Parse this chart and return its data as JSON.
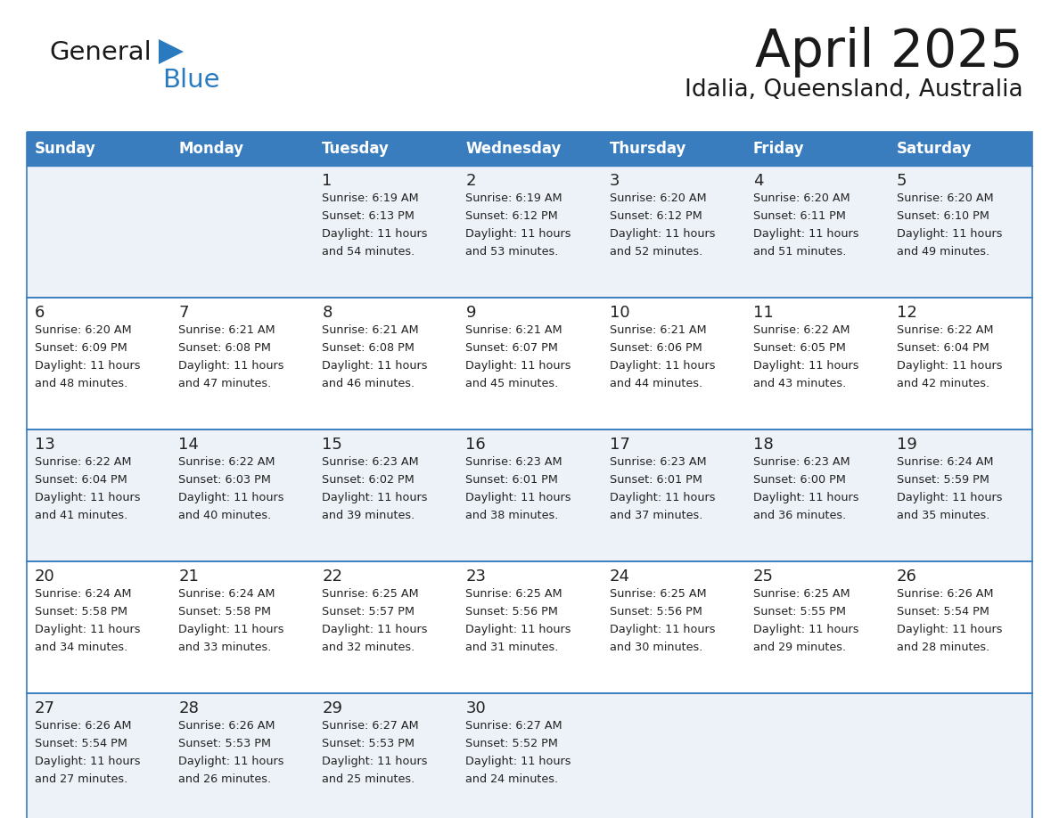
{
  "title": "April 2025",
  "subtitle": "Idalia, Queensland, Australia",
  "header_bg_color": "#3a7dbf",
  "header_text_color": "#ffffff",
  "row_bg_even": "#edf2f8",
  "row_bg_odd": "#ffffff",
  "day_names": [
    "Sunday",
    "Monday",
    "Tuesday",
    "Wednesday",
    "Thursday",
    "Friday",
    "Saturday"
  ],
  "days": [
    {
      "day": 1,
      "col": 2,
      "row": 0,
      "sunrise": "6:19 AM",
      "sunset": "6:13 PM",
      "daylight": "11 hours and 54 minutes."
    },
    {
      "day": 2,
      "col": 3,
      "row": 0,
      "sunrise": "6:19 AM",
      "sunset": "6:12 PM",
      "daylight": "11 hours and 53 minutes."
    },
    {
      "day": 3,
      "col": 4,
      "row": 0,
      "sunrise": "6:20 AM",
      "sunset": "6:12 PM",
      "daylight": "11 hours and 52 minutes."
    },
    {
      "day": 4,
      "col": 5,
      "row": 0,
      "sunrise": "6:20 AM",
      "sunset": "6:11 PM",
      "daylight": "11 hours and 51 minutes."
    },
    {
      "day": 5,
      "col": 6,
      "row": 0,
      "sunrise": "6:20 AM",
      "sunset": "6:10 PM",
      "daylight": "11 hours and 49 minutes."
    },
    {
      "day": 6,
      "col": 0,
      "row": 1,
      "sunrise": "6:20 AM",
      "sunset": "6:09 PM",
      "daylight": "11 hours and 48 minutes."
    },
    {
      "day": 7,
      "col": 1,
      "row": 1,
      "sunrise": "6:21 AM",
      "sunset": "6:08 PM",
      "daylight": "11 hours and 47 minutes."
    },
    {
      "day": 8,
      "col": 2,
      "row": 1,
      "sunrise": "6:21 AM",
      "sunset": "6:08 PM",
      "daylight": "11 hours and 46 minutes."
    },
    {
      "day": 9,
      "col": 3,
      "row": 1,
      "sunrise": "6:21 AM",
      "sunset": "6:07 PM",
      "daylight": "11 hours and 45 minutes."
    },
    {
      "day": 10,
      "col": 4,
      "row": 1,
      "sunrise": "6:21 AM",
      "sunset": "6:06 PM",
      "daylight": "11 hours and 44 minutes."
    },
    {
      "day": 11,
      "col": 5,
      "row": 1,
      "sunrise": "6:22 AM",
      "sunset": "6:05 PM",
      "daylight": "11 hours and 43 minutes."
    },
    {
      "day": 12,
      "col": 6,
      "row": 1,
      "sunrise": "6:22 AM",
      "sunset": "6:04 PM",
      "daylight": "11 hours and 42 minutes."
    },
    {
      "day": 13,
      "col": 0,
      "row": 2,
      "sunrise": "6:22 AM",
      "sunset": "6:04 PM",
      "daylight": "11 hours and 41 minutes."
    },
    {
      "day": 14,
      "col": 1,
      "row": 2,
      "sunrise": "6:22 AM",
      "sunset": "6:03 PM",
      "daylight": "11 hours and 40 minutes."
    },
    {
      "day": 15,
      "col": 2,
      "row": 2,
      "sunrise": "6:23 AM",
      "sunset": "6:02 PM",
      "daylight": "11 hours and 39 minutes."
    },
    {
      "day": 16,
      "col": 3,
      "row": 2,
      "sunrise": "6:23 AM",
      "sunset": "6:01 PM",
      "daylight": "11 hours and 38 minutes."
    },
    {
      "day": 17,
      "col": 4,
      "row": 2,
      "sunrise": "6:23 AM",
      "sunset": "6:01 PM",
      "daylight": "11 hours and 37 minutes."
    },
    {
      "day": 18,
      "col": 5,
      "row": 2,
      "sunrise": "6:23 AM",
      "sunset": "6:00 PM",
      "daylight": "11 hours and 36 minutes."
    },
    {
      "day": 19,
      "col": 6,
      "row": 2,
      "sunrise": "6:24 AM",
      "sunset": "5:59 PM",
      "daylight": "11 hours and 35 minutes."
    },
    {
      "day": 20,
      "col": 0,
      "row": 3,
      "sunrise": "6:24 AM",
      "sunset": "5:58 PM",
      "daylight": "11 hours and 34 minutes."
    },
    {
      "day": 21,
      "col": 1,
      "row": 3,
      "sunrise": "6:24 AM",
      "sunset": "5:58 PM",
      "daylight": "11 hours and 33 minutes."
    },
    {
      "day": 22,
      "col": 2,
      "row": 3,
      "sunrise": "6:25 AM",
      "sunset": "5:57 PM",
      "daylight": "11 hours and 32 minutes."
    },
    {
      "day": 23,
      "col": 3,
      "row": 3,
      "sunrise": "6:25 AM",
      "sunset": "5:56 PM",
      "daylight": "11 hours and 31 minutes."
    },
    {
      "day": 24,
      "col": 4,
      "row": 3,
      "sunrise": "6:25 AM",
      "sunset": "5:56 PM",
      "daylight": "11 hours and 30 minutes."
    },
    {
      "day": 25,
      "col": 5,
      "row": 3,
      "sunrise": "6:25 AM",
      "sunset": "5:55 PM",
      "daylight": "11 hours and 29 minutes."
    },
    {
      "day": 26,
      "col": 6,
      "row": 3,
      "sunrise": "6:26 AM",
      "sunset": "5:54 PM",
      "daylight": "11 hours and 28 minutes."
    },
    {
      "day": 27,
      "col": 0,
      "row": 4,
      "sunrise": "6:26 AM",
      "sunset": "5:54 PM",
      "daylight": "11 hours and 27 minutes."
    },
    {
      "day": 28,
      "col": 1,
      "row": 4,
      "sunrise": "6:26 AM",
      "sunset": "5:53 PM",
      "daylight": "11 hours and 26 minutes."
    },
    {
      "day": 29,
      "col": 2,
      "row": 4,
      "sunrise": "6:27 AM",
      "sunset": "5:53 PM",
      "daylight": "11 hours and 25 minutes."
    },
    {
      "day": 30,
      "col": 3,
      "row": 4,
      "sunrise": "6:27 AM",
      "sunset": "5:52 PM",
      "daylight": "11 hours and 24 minutes."
    }
  ],
  "num_rows": 5,
  "num_cols": 7,
  "logo_color_general": "#1a1a1a",
  "logo_color_blue": "#2a7abf",
  "text_color_dark": "#222222",
  "separator_line_color": "#3a7dbf",
  "cell_text_color": "#222222",
  "title_color": "#1a1a1a",
  "subtitle_color": "#1a1a1a"
}
